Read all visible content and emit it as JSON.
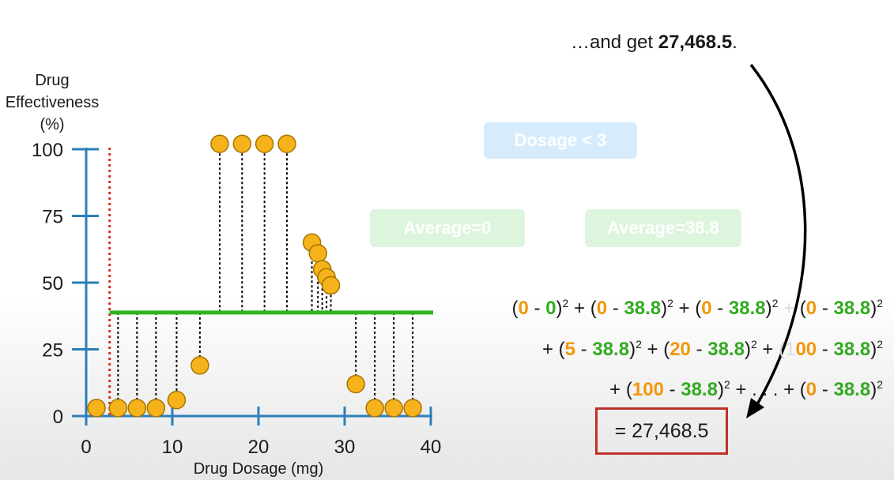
{
  "caption": {
    "prefix": "…and get ",
    "value": "27,468.5",
    "suffix": "."
  },
  "tree": {
    "root": "Dosage < 3",
    "left_leaf": "Average=0",
    "right_leaf": "Average=38.8"
  },
  "equation": {
    "line1": [
      {
        "t": "("
      },
      {
        "t": "0",
        "c": "o"
      },
      {
        "t": " - "
      },
      {
        "t": "0",
        "c": "g"
      },
      {
        "t": ")"
      },
      {
        "sup": "2"
      },
      {
        "t": " + ("
      },
      {
        "t": "0",
        "c": "o"
      },
      {
        "t": " - "
      },
      {
        "t": "38.8",
        "c": "g"
      },
      {
        "t": ")"
      },
      {
        "sup": "2"
      },
      {
        "t": " + ("
      },
      {
        "t": "0",
        "c": "o"
      },
      {
        "t": " - "
      },
      {
        "t": "38.8",
        "c": "g"
      },
      {
        "t": ")"
      },
      {
        "sup": "2"
      },
      {
        "t": " + ",
        "c": "faded"
      },
      {
        "t": "("
      },
      {
        "t": "0",
        "c": "o"
      },
      {
        "t": " - "
      },
      {
        "t": "38.8",
        "c": "g"
      },
      {
        "t": ")"
      },
      {
        "sup": "2"
      }
    ],
    "line2": [
      {
        "t": "+ ("
      },
      {
        "t": "5",
        "c": "o"
      },
      {
        "t": " - "
      },
      {
        "t": "38.8",
        "c": "g"
      },
      {
        "t": ")"
      },
      {
        "sup": "2"
      },
      {
        "t": " + ("
      },
      {
        "t": "20",
        "c": "o"
      },
      {
        "t": " - "
      },
      {
        "t": "38.8",
        "c": "g"
      },
      {
        "t": ")"
      },
      {
        "sup": "2"
      },
      {
        "t": " + "
      },
      {
        "t": "(1",
        "c": "faded"
      },
      {
        "t": "00",
        "c": "o"
      },
      {
        "t": " - "
      },
      {
        "t": "38.8",
        "c": "g"
      },
      {
        "t": ")"
      },
      {
        "sup": "2"
      }
    ],
    "line3": [
      {
        "t": "+ ("
      },
      {
        "t": "100",
        "c": "o"
      },
      {
        "t": " - "
      },
      {
        "t": "38.8",
        "c": "g"
      },
      {
        "t": ")"
      },
      {
        "sup": "2"
      },
      {
        "t": " + . . . + ("
      },
      {
        "t": "0",
        "c": "o"
      },
      {
        "t": " - "
      },
      {
        "t": "38.8",
        "c": "g"
      },
      {
        "t": ")"
      },
      {
        "sup": "2"
      }
    ],
    "result": "= 27,468.5"
  },
  "chart_data": {
    "type": "scatter",
    "ylabel": "Drug Effectiveness (%)",
    "ylabel_lines": [
      "Drug",
      "Effectiveness",
      "(%)"
    ],
    "xlabel": "Drug Dosage (mg)",
    "xlim": [
      0,
      40
    ],
    "ylim": [
      0,
      100
    ],
    "x_ticks": [
      0,
      10,
      20,
      30,
      40
    ],
    "y_ticks": [
      0,
      25,
      50,
      75,
      100
    ],
    "split_threshold": 3,
    "prediction_line": {
      "y": 38.8,
      "x_range": [
        3,
        40
      ]
    },
    "points": [
      {
        "x": 1.2,
        "y": 3
      },
      {
        "x": 3.7,
        "y": 3
      },
      {
        "x": 5.9,
        "y": 3
      },
      {
        "x": 8.1,
        "y": 3
      },
      {
        "x": 10.5,
        "y": 6
      },
      {
        "x": 13.2,
        "y": 19
      },
      {
        "x": 15.5,
        "y": 102
      },
      {
        "x": 18.1,
        "y": 102
      },
      {
        "x": 20.7,
        "y": 102
      },
      {
        "x": 23.3,
        "y": 102
      },
      {
        "x": 26.2,
        "y": 65
      },
      {
        "x": 26.9,
        "y": 61
      },
      {
        "x": 27.4,
        "y": 55
      },
      {
        "x": 27.9,
        "y": 52
      },
      {
        "x": 28.4,
        "y": 49
      },
      {
        "x": 31.3,
        "y": 12
      },
      {
        "x": 33.5,
        "y": 3
      },
      {
        "x": 35.7,
        "y": 3
      },
      {
        "x": 37.9,
        "y": 3
      }
    ],
    "colors": {
      "axis": "#2a7fb8",
      "point_fill": "#f5b21a",
      "point_stroke": "#a87500",
      "prediction": "#2db51d",
      "threshold": "#d0302a",
      "residual": "#000000"
    },
    "grid": false
  }
}
